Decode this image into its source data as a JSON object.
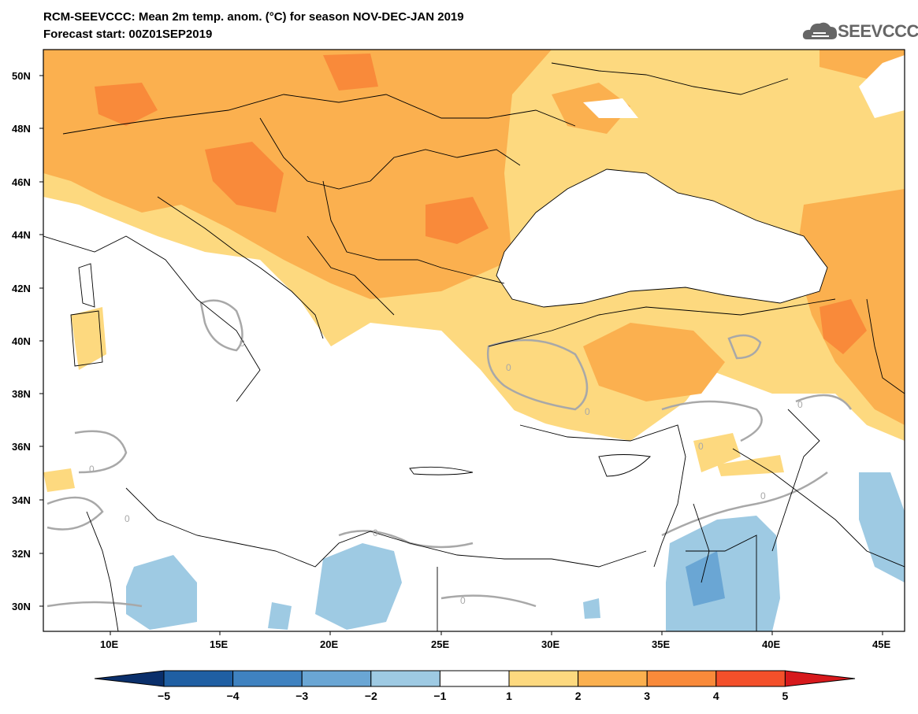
{
  "header": {
    "title_line1": "RCM-SEEVCCC: Mean 2m temp. anom. (°C) for season NOV-DEC-JAN 2019",
    "title_line2": "Forecast start: 00Z01SEP2019"
  },
  "logo": {
    "text": "SEEVCCC",
    "icon": "cloud-icon"
  },
  "axes": {
    "lat_labels": [
      "50N",
      "48N",
      "46N",
      "44N",
      "42N",
      "40N",
      "38N",
      "36N",
      "34N",
      "32N",
      "30N"
    ],
    "lon_labels": [
      "10E",
      "15E",
      "20E",
      "25E",
      "30E",
      "35E",
      "40E",
      "45E"
    ]
  },
  "colorbar": {
    "ticks": [
      "-5",
      "-4",
      "-3",
      "-2",
      "-1",
      "1",
      "2",
      "3",
      "4",
      "5"
    ],
    "colors": [
      "#0a2f6b",
      "#1f5fa3",
      "#3f82c0",
      "#6aa6d4",
      "#9ecae3",
      "#ffffff",
      "#fdd97f",
      "#fbb04f",
      "#f98a3a",
      "#f4502a",
      "#d7191c"
    ]
  },
  "contour_label": "0"
}
